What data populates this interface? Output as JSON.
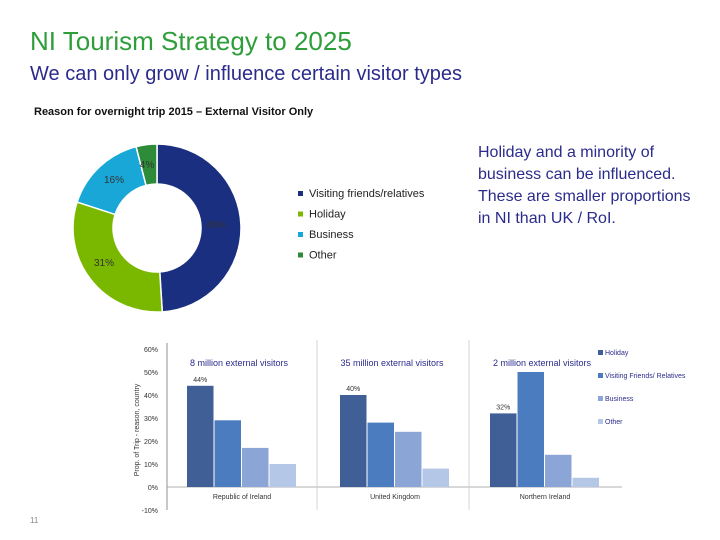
{
  "slide": {
    "title": "NI Tourism Strategy to 2025",
    "subtitle": "We can only grow / influence certain visitor types",
    "side_text": "Holiday and a minority of business can be influenced. These are smaller proportions in NI than UK / RoI.",
    "page_number": "11"
  },
  "colors": {
    "vfr": "#1b2f80",
    "holiday": "#7ab800",
    "business": "#19a7d8",
    "other": "#2e8b3a",
    "bar_holiday": "#3f5f96",
    "bar_vfr": "#4c7cc0",
    "bar_business": "#8aa5d6",
    "bar_other": "#b5c7e6"
  },
  "chart_data": [
    {
      "type": "pie",
      "title": "Reason for overnight trip 2015 – External Visitor Only",
      "slices": [
        {
          "name": "Visiting friends/relatives",
          "value": 49,
          "label": "49%"
        },
        {
          "name": "Holiday",
          "value": 31,
          "label": "31%"
        },
        {
          "name": "Business",
          "value": 16,
          "label": "16%"
        },
        {
          "name": "Other",
          "value": 4,
          "label": "4%"
        }
      ]
    },
    {
      "type": "bar",
      "ylabel": "Prop. of Trip - reason, country",
      "ylim": [
        -10,
        60
      ],
      "yticks": [
        -10,
        0,
        10,
        20,
        30,
        40,
        50,
        60
      ],
      "ytick_labels": [
        "-10%",
        "0%",
        "10%",
        "20%",
        "30%",
        "40%",
        "50%",
        "60%"
      ],
      "categories": [
        "Republic of Ireland",
        "United Kingdom",
        "Northern Ireland"
      ],
      "group_titles": [
        "8 million external visitors",
        "35 million external visitors",
        "2 million external visitors"
      ],
      "series": [
        {
          "name": "Holiday",
          "values": [
            44,
            40,
            32
          ]
        },
        {
          "name": "Visiting Friends/ Relatives",
          "values": [
            29,
            28,
            50
          ]
        },
        {
          "name": "Business",
          "values": [
            17,
            24,
            14
          ]
        },
        {
          "name": "Other",
          "values": [
            10,
            8,
            4
          ]
        }
      ],
      "annotations": [
        "44%",
        "40%",
        "32%"
      ]
    }
  ]
}
